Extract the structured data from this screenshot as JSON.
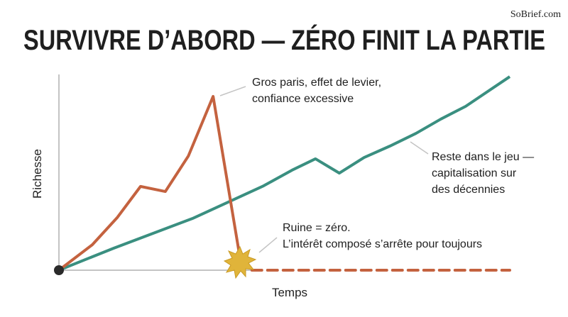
{
  "header": {
    "brand": "SoBrief.com"
  },
  "chart_data": {
    "type": "line",
    "title": "SURVIVRE D’ABORD — ZÉRO FINIT LA PARTIE",
    "x_label": "Temps",
    "y_label": "Richesse",
    "xlim": [
      0,
      100
    ],
    "ylim": [
      0,
      100
    ],
    "series": [
      {
        "color": "#3a8f80",
        "width": 4,
        "dashed": false,
        "x": [
          0,
          12.1,
          29.6,
          45.4,
          51.7,
          56.9,
          62.2,
          67.7,
          73.4,
          79.2,
          84.7,
          90.2,
          100
        ],
        "values": [
          0,
          11.2,
          26.4,
          43.1,
          51.1,
          56.9,
          49.6,
          57.6,
          63.4,
          69.9,
          77.2,
          83.7,
          98.9
        ]
      },
      {
        "color": "#c4623f",
        "width": 4,
        "dashed": false,
        "x": [
          0,
          7.4,
          12.9,
          18.1,
          23.6,
          28.7,
          34.2,
          40.2
        ],
        "values": [
          0,
          13.0,
          26.8,
          42.8,
          40.2,
          58.3,
          88.8,
          5.8
        ]
      },
      {
        "color": "#c4623f",
        "width": 4,
        "dashed": true,
        "x": [
          42.8,
          100
        ],
        "values": [
          0,
          0
        ]
      }
    ],
    "annotations": [
      {
        "lines": [
          "Gros paris, effet de levier,",
          "confiance excessive"
        ]
      },
      {
        "lines": [
          "Reste dans le jeu —",
          "capitalisation sur",
          "des décennies"
        ]
      },
      {
        "lines": [
          "Ruine = zéro.",
          "L’intérêt composé s’arrête pour toujours"
        ]
      }
    ]
  }
}
